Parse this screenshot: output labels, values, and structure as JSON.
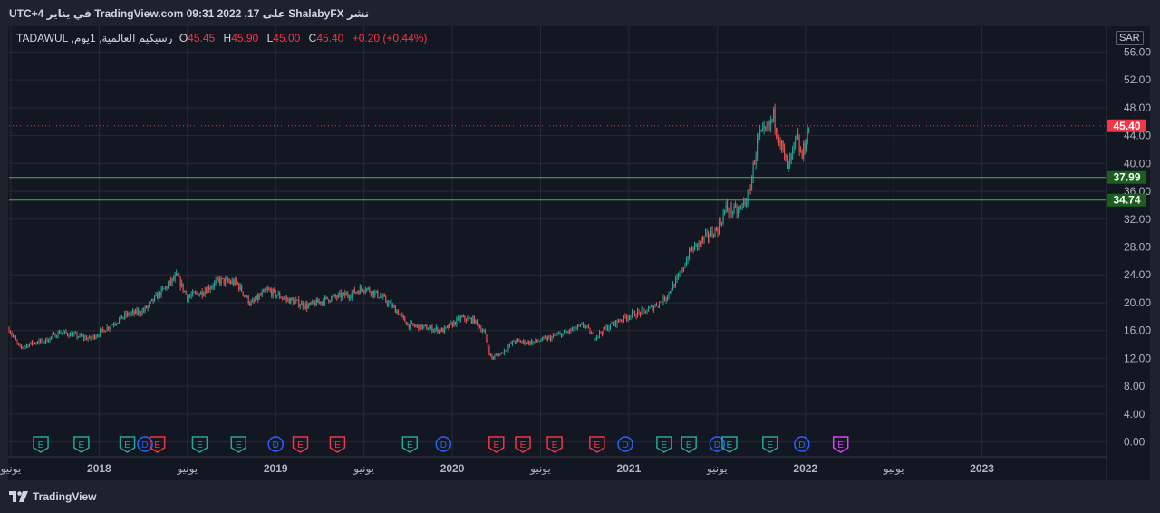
{
  "header": {
    "published_text": "نشر ShalabyFX على TradingView.com 09:31 2022 ,17 في يناير UTC+4"
  },
  "legend": {
    "symbol": "رسيكيم العالمية, 1يوم, TADAWUL",
    "o_label": "O",
    "o": "45.45",
    "h_label": "H",
    "h": "45.90",
    "l_label": "L",
    "l": "45.00",
    "c_label": "C",
    "c": "45.40",
    "change": "+0.20 (+0.44%)"
  },
  "currency": "SAR",
  "footer": {
    "brand": "TradingView"
  },
  "colors": {
    "up": "#26a69a",
    "down": "#ef5350",
    "support": "#4caf50",
    "price_line": "#f23645",
    "earnings_green": "#26a69a",
    "earnings_red": "#f23645",
    "dividend": "#2962ff",
    "earnings_future": "#e040fb"
  },
  "chart_data": {
    "type": "candlestick",
    "y_ticks": [
      "56.00",
      "52.00",
      "48.00",
      "44.00",
      "40.00",
      "36.00",
      "32.00",
      "28.00",
      "24.00",
      "20.00",
      "16.00",
      "12.00",
      "8.00",
      "4.00",
      "0.00"
    ],
    "ylim": [
      -2,
      58
    ],
    "x_ticks": [
      {
        "t": 2017.5,
        "label": "يونيو"
      },
      {
        "t": 2018.0,
        "label": "2018"
      },
      {
        "t": 2018.5,
        "label": "يونيو"
      },
      {
        "t": 2019.0,
        "label": "2019"
      },
      {
        "t": 2019.5,
        "label": "يونيو"
      },
      {
        "t": 2020.0,
        "label": "2020"
      },
      {
        "t": 2020.5,
        "label": "يونيو"
      },
      {
        "t": 2021.0,
        "label": "2021"
      },
      {
        "t": 2021.5,
        "label": "يونيو"
      },
      {
        "t": 2022.0,
        "label": "2022"
      },
      {
        "t": 2022.5,
        "label": "يونيو"
      },
      {
        "t": 2023.0,
        "label": "2023"
      }
    ],
    "xlim": [
      2017.49,
      2023.7
    ],
    "price_path": [
      [
        2017.49,
        16.2
      ],
      [
        2017.55,
        13.5
      ],
      [
        2017.62,
        14.2
      ],
      [
        2017.7,
        14.6
      ],
      [
        2017.78,
        15.8
      ],
      [
        2017.88,
        15.2
      ],
      [
        2017.95,
        14.8
      ],
      [
        2018.05,
        16.5
      ],
      [
        2018.15,
        18.2
      ],
      [
        2018.25,
        18.8
      ],
      [
        2018.35,
        21.5
      ],
      [
        2018.44,
        23.8
      ],
      [
        2018.5,
        20.8
      ],
      [
        2018.58,
        21.5
      ],
      [
        2018.68,
        23.2
      ],
      [
        2018.78,
        22.8
      ],
      [
        2018.86,
        19.8
      ],
      [
        2018.95,
        21.8
      ],
      [
        2019.05,
        20.6
      ],
      [
        2019.18,
        19.5
      ],
      [
        2019.3,
        20.6
      ],
      [
        2019.42,
        21.2
      ],
      [
        2019.5,
        22.2
      ],
      [
        2019.6,
        20.8
      ],
      [
        2019.68,
        19.0
      ],
      [
        2019.75,
        16.8
      ],
      [
        2019.85,
        16.4
      ],
      [
        2019.95,
        16.0
      ],
      [
        2020.05,
        17.8
      ],
      [
        2020.12,
        17.5
      ],
      [
        2020.18,
        15.8
      ],
      [
        2020.22,
        12.0
      ],
      [
        2020.28,
        12.8
      ],
      [
        2020.35,
        14.5
      ],
      [
        2020.45,
        14.3
      ],
      [
        2020.55,
        14.9
      ],
      [
        2020.65,
        15.8
      ],
      [
        2020.75,
        16.8
      ],
      [
        2020.8,
        15.0
      ],
      [
        2020.9,
        16.8
      ],
      [
        2021.0,
        18.2
      ],
      [
        2021.1,
        18.8
      ],
      [
        2021.2,
        20.5
      ],
      [
        2021.28,
        23.5
      ],
      [
        2021.35,
        27.5
      ],
      [
        2021.42,
        29.0
      ],
      [
        2021.5,
        30.5
      ],
      [
        2021.55,
        33.5
      ],
      [
        2021.62,
        33.0
      ],
      [
        2021.68,
        35.5
      ],
      [
        2021.73,
        43.5
      ],
      [
        2021.78,
        44.5
      ],
      [
        2021.82,
        46.8
      ],
      [
        2021.86,
        43.0
      ],
      [
        2021.9,
        39.0
      ],
      [
        2021.95,
        43.5
      ],
      [
        2021.98,
        40.8
      ],
      [
        2022.02,
        45.4
      ]
    ],
    "current_price": 45.4,
    "support_levels": [
      37.99,
      34.74
    ],
    "events": [
      {
        "t": 2017.67,
        "type": "E",
        "color": "green"
      },
      {
        "t": 2017.9,
        "type": "E",
        "color": "green"
      },
      {
        "t": 2018.16,
        "type": "E",
        "color": "green"
      },
      {
        "t": 2018.26,
        "type": "D",
        "color": "blue"
      },
      {
        "t": 2018.33,
        "type": "E",
        "color": "red"
      },
      {
        "t": 2018.57,
        "type": "E",
        "color": "green"
      },
      {
        "t": 2018.79,
        "type": "E",
        "color": "green"
      },
      {
        "t": 2019.0,
        "type": "D",
        "color": "blue"
      },
      {
        "t": 2019.14,
        "type": "E",
        "color": "red"
      },
      {
        "t": 2019.35,
        "type": "E",
        "color": "red"
      },
      {
        "t": 2019.76,
        "type": "E",
        "color": "green"
      },
      {
        "t": 2019.95,
        "type": "D",
        "color": "blue"
      },
      {
        "t": 2020.25,
        "type": "E",
        "color": "red"
      },
      {
        "t": 2020.4,
        "type": "E",
        "color": "red"
      },
      {
        "t": 2020.58,
        "type": "E",
        "color": "red"
      },
      {
        "t": 2020.82,
        "type": "E",
        "color": "red"
      },
      {
        "t": 2020.98,
        "type": "D",
        "color": "blue"
      },
      {
        "t": 2021.2,
        "type": "E",
        "color": "green"
      },
      {
        "t": 2021.34,
        "type": "E",
        "color": "green"
      },
      {
        "t": 2021.5,
        "type": "D",
        "color": "blue"
      },
      {
        "t": 2021.57,
        "type": "E",
        "color": "green"
      },
      {
        "t": 2021.8,
        "type": "E",
        "color": "green"
      },
      {
        "t": 2021.98,
        "type": "D",
        "color": "blue"
      },
      {
        "t": 2022.2,
        "type": "E",
        "color": "purple"
      }
    ]
  }
}
